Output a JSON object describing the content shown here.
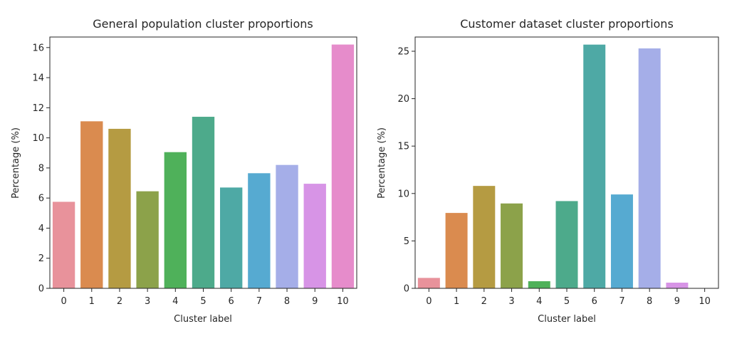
{
  "chart_data": [
    {
      "type": "bar",
      "title": "General population cluster proportions",
      "xlabel": "Cluster label",
      "ylabel": "Percentage (%)",
      "categories": [
        "0",
        "1",
        "2",
        "3",
        "4",
        "5",
        "6",
        "7",
        "8",
        "9",
        "10"
      ],
      "values": [
        5.75,
        11.1,
        10.6,
        6.45,
        9.05,
        11.4,
        6.7,
        7.65,
        8.2,
        6.95,
        16.2
      ],
      "ylim": [
        0,
        16.7
      ],
      "yticks": [
        0,
        2,
        4,
        6,
        8,
        10,
        12,
        14,
        16
      ],
      "colors": [
        "#e8929b",
        "#da8b4f",
        "#b59b42",
        "#8ca24a",
        "#4fb15a",
        "#4daa8b",
        "#4ea9a5",
        "#56aad1",
        "#a5aee8",
        "#d794e6",
        "#e68ccb"
      ]
    },
    {
      "type": "bar",
      "title": "Customer dataset cluster proportions",
      "xlabel": "Cluster label",
      "ylabel": "Percentage (%)",
      "categories": [
        "0",
        "1",
        "2",
        "3",
        "4",
        "5",
        "6",
        "7",
        "8",
        "9",
        "10"
      ],
      "values": [
        1.1,
        7.95,
        10.8,
        8.95,
        0.75,
        9.2,
        25.7,
        9.9,
        25.3,
        0.6,
        0
      ],
      "ylim": [
        0,
        26.5
      ],
      "yticks": [
        0,
        5,
        10,
        15,
        20,
        25
      ],
      "colors": [
        "#e8929b",
        "#da8b4f",
        "#b59b42",
        "#8ca24a",
        "#4fb15a",
        "#4daa8b",
        "#4ea9a5",
        "#56aad1",
        "#a5aee8",
        "#d794e6",
        "#e68ccb"
      ]
    }
  ]
}
